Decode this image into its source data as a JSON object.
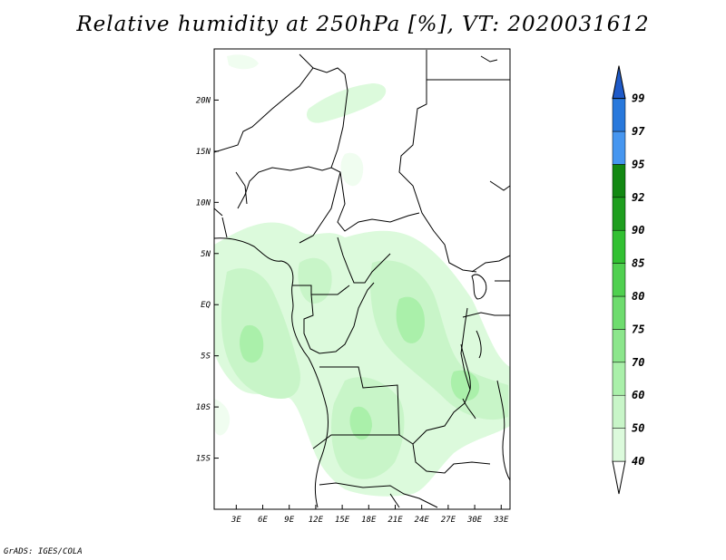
{
  "title": "Relative humidity at 250hPa [%], VT: 2020031612",
  "credit": "GrADS: IGES/COLA",
  "map": {
    "lat_labels": [
      "20N",
      "15N",
      "10N",
      "5N",
      "EQ",
      "5S",
      "10S",
      "15S"
    ],
    "lat_values": [
      20,
      15,
      10,
      5,
      0,
      -5,
      -10,
      -15
    ],
    "lon_labels": [
      "3E",
      "6E",
      "9E",
      "12E",
      "15E",
      "18E",
      "21E",
      "24E",
      "27E",
      "30E",
      "33E"
    ],
    "lon_values": [
      3,
      6,
      9,
      12,
      15,
      18,
      21,
      24,
      27,
      30,
      33
    ],
    "lon_range": [
      0.5,
      34
    ],
    "lat_range": [
      -20,
      25
    ],
    "coastline_color": "#000000"
  },
  "colorbar": {
    "levels": [
      "40",
      "50",
      "60",
      "70",
      "75",
      "80",
      "85",
      "90",
      "92",
      "95",
      "97",
      "99"
    ],
    "colors": [
      "#f0fdf0",
      "#dcfadc",
      "#c8f5c8",
      "#aaf0aa",
      "#8ce68c",
      "#6edc6e",
      "#50d050",
      "#32c032",
      "#1e9e1e",
      "#128812",
      "#4696f0",
      "#2878dc",
      "#1e5ac8"
    ],
    "under_color": "#ffffff"
  }
}
